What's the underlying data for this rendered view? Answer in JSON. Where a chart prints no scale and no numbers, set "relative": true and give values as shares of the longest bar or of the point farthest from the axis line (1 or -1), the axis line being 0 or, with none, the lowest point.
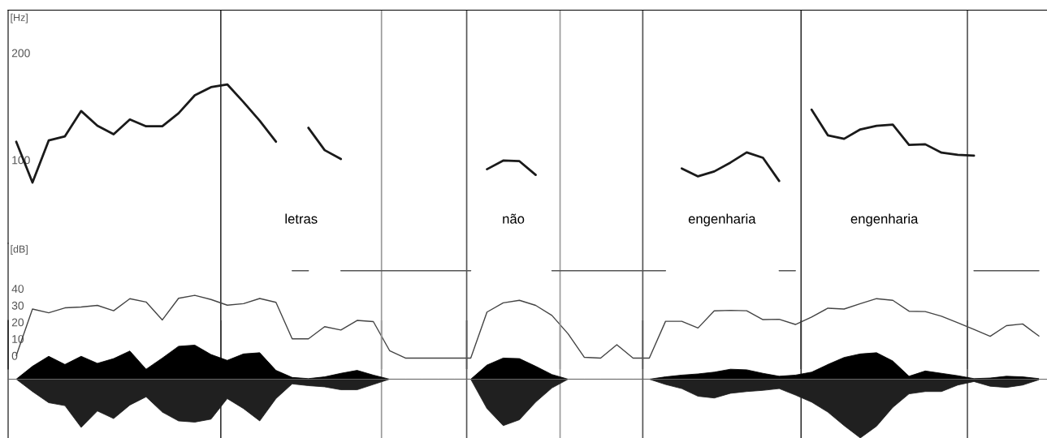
{
  "chart_data": [
    {
      "type": "line",
      "ylabel": "[Hz]",
      "categories": [
        null,
        null,
        null,
        null,
        null,
        null,
        null,
        null,
        null,
        null,
        null,
        null,
        null,
        null,
        null,
        null,
        null,
        null,
        null,
        null,
        null,
        null,
        null,
        null,
        null,
        null,
        null,
        null,
        null,
        null,
        null,
        null,
        null,
        null,
        null,
        null,
        null,
        null,
        null,
        null,
        null,
        null,
        null,
        null,
        null,
        null,
        null,
        null,
        null,
        null,
        null,
        null,
        null,
        null,
        null,
        null,
        null,
        null,
        null,
        null,
        null,
        null,
        null,
        null
      ],
      "ylim": [
        22,
        240
      ],
      "yticks": [
        100,
        200
      ],
      "tick_labels": "y",
      "series": [
        {
          "color": "#1a1a1a",
          "values": [
            117,
            78.8,
            118.2,
            122,
            145.7,
            132,
            124,
            137.8,
            131.4,
            131.5,
            143.6,
            160.4,
            168,
            170.6,
            154,
            136.6,
            117,
            null,
            130,
            109.1,
            100.8,
            null,
            null,
            null,
            null,
            null,
            null,
            null,
            null,
            91.3,
            99.4,
            98.8,
            86,
            null,
            null,
            null,
            null,
            null,
            null,
            null,
            null,
            92,
            84.6,
            89.2,
            97.5,
            107,
            102,
            80.3,
            null,
            147,
            123,
            119.7,
            128.5,
            131.9,
            133,
            114,
            114.6,
            106.8,
            104.7,
            104,
            null,
            null,
            null,
            null
          ]
        }
      ],
      "annotations": [
        "letras",
        "não",
        "engenharia",
        "engenharia"
      ]
    },
    {
      "type": "line",
      "ylabel": "[dB]",
      "categories": [
        null,
        null,
        null,
        null,
        null,
        null,
        null,
        null,
        null,
        null,
        null,
        null,
        null,
        null,
        null,
        null,
        null,
        null,
        null,
        null,
        null,
        null,
        null,
        null,
        null,
        null,
        null,
        null,
        null,
        null,
        null,
        null,
        null,
        null,
        null,
        null,
        null,
        null,
        null,
        null,
        null,
        null,
        null,
        null,
        null,
        null,
        null,
        null,
        null,
        null,
        null,
        null,
        null,
        null,
        null,
        null,
        null,
        null,
        null,
        null,
        null,
        null,
        null,
        null
      ],
      "ylim": [
        -8,
        67
      ],
      "yticks": [
        0,
        10,
        20,
        30,
        40
      ],
      "tick_labels": "y",
      "series": [
        {
          "color": "#444444",
          "values": [
            0,
            27.8,
            25.6,
            28.5,
            29,
            30,
            26.8,
            34,
            32,
            21.3,
            34.2,
            36,
            33.5,
            30.1,
            31,
            34.1,
            31.8,
            10,
            10,
            17.3,
            15.3,
            21,
            20.3,
            3,
            -1.5,
            -1.5,
            -1.5,
            -1.5,
            -1.5,
            26,
            31.5,
            33,
            30,
            24,
            13,
            -1,
            -1.5,
            6.5,
            -1.5,
            -1.5,
            20.5,
            20.5,
            16.5,
            26.7,
            27,
            26.8,
            21.5,
            21.7,
            18.6,
            23,
            28.3,
            27.8,
            31,
            34,
            33,
            26.5,
            26.3,
            23.5,
            19.6,
            15.6,
            11.5,
            17.9,
            18.9,
            11.7
          ]
        },
        {
          "color": "#555555",
          "values": [
            null,
            null,
            null,
            null,
            null,
            null,
            null,
            null,
            null,
            null,
            null,
            null,
            null,
            null,
            null,
            null,
            null,
            50.7,
            50.7,
            null,
            50.7,
            50.7,
            50.7,
            50.7,
            50.7,
            50.7,
            50.7,
            50.7,
            50.7,
            null,
            null,
            null,
            null,
            50.7,
            50.7,
            50.7,
            50.7,
            50.7,
            50.7,
            50.7,
            50.7,
            null,
            null,
            null,
            null,
            null,
            null,
            50.7,
            50.7,
            null,
            null,
            null,
            null,
            null,
            null,
            null,
            null,
            null,
            null,
            50.7,
            50.7,
            50.7,
            50.7,
            50.7
          ]
        }
      ]
    },
    {
      "type": "area",
      "relative": true,
      "categories": [
        null,
        null,
        null,
        null,
        null,
        null,
        null,
        null,
        null,
        null,
        null,
        null,
        null,
        null,
        null,
        null,
        null,
        null,
        null,
        null,
        null,
        null,
        null,
        null,
        null,
        null,
        null,
        null,
        null,
        null,
        null,
        null,
        null,
        null,
        null,
        null,
        null,
        null,
        null,
        null,
        null,
        null,
        null,
        null,
        null,
        null,
        null,
        null,
        null,
        null,
        null,
        null,
        null,
        null,
        null,
        null,
        null,
        null,
        null,
        null,
        null,
        null,
        null,
        null
      ],
      "tick_labels": false,
      "series": [
        {
          "color": "#000000",
          "values": [
            0,
            0.22,
            0.39,
            0.25,
            0.39,
            0.27,
            0.35,
            0.48,
            0.17,
            0.36,
            0.56,
            0.58,
            0.42,
            0.32,
            0.43,
            0.45,
            0.15,
            0.03,
            0.01,
            0.04,
            0.1,
            0.15,
            0.07,
            0,
            0,
            0,
            0,
            0,
            0,
            0.24,
            0.36,
            0.35,
            0.22,
            0.08,
            0,
            0,
            0,
            0,
            0,
            0,
            0.04,
            0.07,
            0.09,
            0.12,
            0.17,
            0.16,
            0.1,
            0.05,
            0.07,
            0.12,
            0.25,
            0.37,
            0.43,
            0.45,
            0.31,
            0.05,
            0.14,
            0.1,
            0.06,
            0.01,
            0.02,
            0.05,
            0.04,
            0.01
          ]
        },
        {
          "color": "#202020",
          "values": [
            0,
            -0.21,
            -0.4,
            -0.45,
            -0.82,
            -0.54,
            -0.67,
            -0.44,
            -0.3,
            -0.56,
            -0.71,
            -0.73,
            -0.68,
            -0.33,
            -0.5,
            -0.71,
            -0.33,
            -0.08,
            -0.11,
            -0.13,
            -0.18,
            -0.18,
            -0.09,
            0,
            0,
            0,
            0,
            0,
            0,
            -0.5,
            -0.79,
            -0.69,
            -0.39,
            -0.15,
            0,
            0,
            0,
            0,
            0,
            0,
            -0.09,
            -0.16,
            -0.29,
            -0.32,
            -0.24,
            -0.21,
            -0.19,
            -0.16,
            -0.27,
            -0.39,
            -0.56,
            -0.79,
            -1,
            -0.8,
            -0.48,
            -0.25,
            -0.21,
            -0.21,
            -0.1,
            -0.04,
            -0.12,
            -0.14,
            -0.1,
            -0.01
          ]
        }
      ]
    }
  ]
}
